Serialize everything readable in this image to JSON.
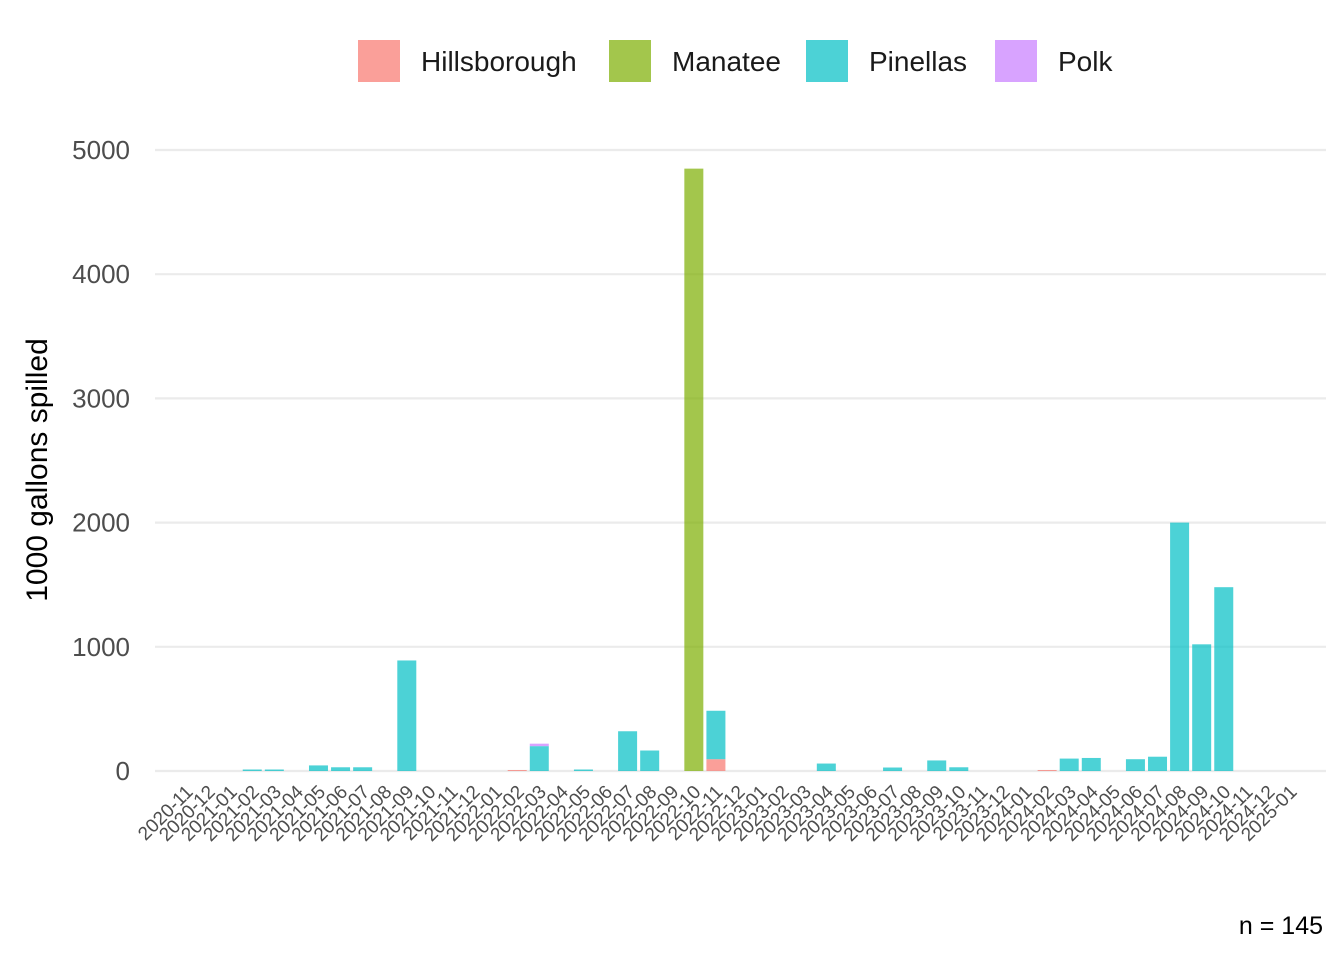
{
  "chart_data": {
    "type": "bar",
    "stacked": true,
    "ylabel": "1000 gallons spilled",
    "xlabel": "",
    "caption": "n =  145",
    "ylim": [
      0,
      5000
    ],
    "yticks": [
      0,
      1000,
      2000,
      3000,
      4000,
      5000
    ],
    "grid": true,
    "legend_position": "top",
    "categories": [
      "2020-11",
      "2020-12",
      "2021-01",
      "2021-02",
      "2021-03",
      "2021-04",
      "2021-05",
      "2021-06",
      "2021-07",
      "2021-08",
      "2021-09",
      "2021-10",
      "2021-11",
      "2021-12",
      "2022-01",
      "2022-02",
      "2022-03",
      "2022-04",
      "2022-05",
      "2022-06",
      "2022-07",
      "2022-08",
      "2022-09",
      "2022-10",
      "2022-11",
      "2022-12",
      "2023-01",
      "2023-02",
      "2023-03",
      "2023-04",
      "2023-05",
      "2023-06",
      "2023-07",
      "2023-08",
      "2023-09",
      "2023-10",
      "2023-11",
      "2023-12",
      "2024-01",
      "2024-02",
      "2024-03",
      "2024-04",
      "2024-05",
      "2024-06",
      "2024-07",
      "2024-08",
      "2024-09",
      "2024-10",
      "2024-11",
      "2024-12",
      "2025-01"
    ],
    "series": [
      {
        "name": "Hillsborough",
        "color": "#F8766D",
        "values": [
          0,
          0,
          0,
          0,
          0,
          0,
          0,
          0,
          0,
          0,
          0,
          0,
          0,
          0,
          0,
          8,
          0,
          0,
          0,
          0,
          0,
          0,
          0,
          0,
          95,
          0,
          0,
          0,
          0,
          0,
          0,
          0,
          0,
          0,
          0,
          0,
          0,
          0,
          0,
          8,
          0,
          0,
          0,
          0,
          0,
          0,
          0,
          0,
          0,
          0,
          0
        ]
      },
      {
        "name": "Manatee",
        "color": "#7CAE00",
        "values": [
          0,
          0,
          0,
          0,
          0,
          0,
          0,
          0,
          0,
          0,
          0,
          0,
          0,
          0,
          0,
          0,
          0,
          0,
          0,
          0,
          0,
          0,
          0,
          4850,
          0,
          0,
          0,
          0,
          0,
          0,
          0,
          0,
          0,
          0,
          0,
          0,
          0,
          0,
          0,
          0,
          0,
          0,
          0,
          0,
          0,
          0,
          0,
          0,
          0,
          0,
          0
        ]
      },
      {
        "name": "Pinellas",
        "color": "#00BFC4",
        "values": [
          0,
          0,
          0,
          12,
          12,
          0,
          45,
          30,
          30,
          0,
          890,
          0,
          0,
          0,
          0,
          0,
          200,
          0,
          12,
          0,
          320,
          165,
          0,
          0,
          390,
          0,
          0,
          0,
          0,
          60,
          0,
          0,
          28,
          0,
          85,
          30,
          0,
          0,
          0,
          0,
          100,
          105,
          0,
          95,
          115,
          2000,
          1020,
          1480,
          0,
          0,
          0
        ]
      },
      {
        "name": "Polk",
        "color": "#C77CFF",
        "values": [
          0,
          0,
          0,
          0,
          0,
          0,
          0,
          0,
          0,
          0,
          0,
          0,
          0,
          0,
          0,
          0,
          20,
          0,
          0,
          0,
          0,
          0,
          0,
          0,
          0,
          0,
          0,
          0,
          0,
          0,
          0,
          0,
          0,
          0,
          0,
          0,
          0,
          0,
          0,
          0,
          0,
          0,
          0,
          0,
          0,
          0,
          0,
          0,
          0,
          0,
          0
        ]
      }
    ]
  }
}
